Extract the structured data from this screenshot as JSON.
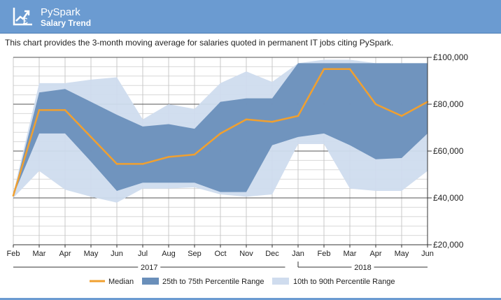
{
  "header": {
    "title": "PySpark",
    "subtitle": "Salary Trend",
    "icon": "trend-chart-pound-icon"
  },
  "description": "This chart provides the 3-month moving average for salaries quoted in permanent IT jobs citing PySpark.",
  "colors": {
    "header_bg": "#6b9bd1",
    "median": "#f0a030",
    "range_25_75": "#6a8fba",
    "range_10_90": "#cfdcee"
  },
  "chart_data": {
    "type": "area",
    "categories": [
      "Feb",
      "Mar",
      "Apr",
      "May",
      "Jun",
      "Jul",
      "Aug",
      "Sep",
      "Oct",
      "Nov",
      "Dec",
      "Jan",
      "Feb",
      "Mar",
      "Apr",
      "May",
      "Jun"
    ],
    "year_labels": [
      {
        "label": "2017",
        "start": 0,
        "end": 10
      },
      {
        "label": "2018",
        "start": 11,
        "end": 16
      }
    ],
    "y_ticks": [
      "£20,000",
      "£40,000",
      "£60,000",
      "£80,000",
      "£100,000"
    ],
    "ylim": [
      20000,
      100000
    ],
    "grid": true,
    "legend_position": "bottom",
    "series": [
      {
        "name": "Median",
        "type": "line",
        "values": [
          41000,
          77500,
          77500,
          66000,
          54500,
          54500,
          57500,
          58500,
          67500,
          73500,
          72500,
          75000,
          95000,
          95000,
          80000,
          75000,
          81000
        ]
      },
      {
        "name": "25th to 75th Percentile Range",
        "type": "band",
        "low": [
          41000,
          67500,
          67500,
          55500,
          43000,
          46500,
          46500,
          46500,
          42500,
          42500,
          62500,
          66000,
          67500,
          62500,
          56500,
          57000,
          67500
        ],
        "high": [
          41000,
          85000,
          86500,
          81000,
          75500,
          70500,
          71500,
          69500,
          81000,
          82500,
          82500,
          97500,
          97500,
          97500,
          97500,
          97500,
          97500
        ]
      },
      {
        "name": "10th to 90th Percentile Range",
        "type": "band",
        "low": [
          40000,
          51500,
          43500,
          40500,
          38000,
          44000,
          44000,
          44500,
          41500,
          40500,
          41500,
          63000,
          63000,
          44000,
          43000,
          43000,
          51500
        ],
        "high": [
          42000,
          89000,
          89000,
          90500,
          91500,
          73500,
          80000,
          78000,
          89000,
          94000,
          89500,
          97500,
          99000,
          99000,
          97500,
          97500,
          97500
        ]
      }
    ]
  }
}
